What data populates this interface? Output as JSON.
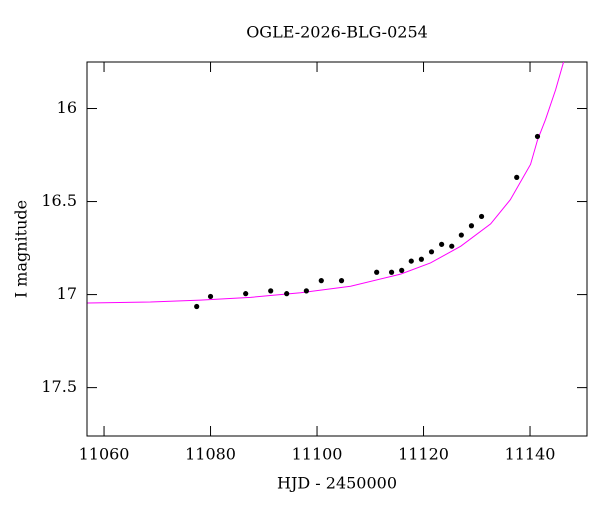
{
  "chart_data": {
    "type": "scatter",
    "title": "OGLE-2026-BLG-0254",
    "x_label": "HJD - 2450000",
    "y_label": "I magnitude",
    "xlim": [
      11056.8,
      11150.7
    ],
    "ylim": [
      15.75,
      17.76
    ],
    "y_inverted": true,
    "xticks": [
      11060,
      11080,
      11100,
      11120,
      11140
    ],
    "yticks": [
      16,
      16.5,
      17,
      17.5
    ],
    "points": {
      "color": "#000000",
      "x": [
        11077.4,
        11080.0,
        11086.6,
        11091.3,
        11094.3,
        11098.0,
        11100.8,
        11104.6,
        11111.2,
        11114.0,
        11115.9,
        11117.7,
        11119.6,
        11121.5,
        11123.4,
        11125.3,
        11127.1,
        11129.0,
        11130.9,
        11137.5,
        11141.4
      ],
      "y": [
        17.064,
        17.01,
        16.995,
        16.98,
        16.995,
        16.98,
        16.925,
        16.925,
        16.88,
        16.88,
        16.87,
        16.82,
        16.81,
        16.77,
        16.73,
        16.74,
        16.68,
        16.63,
        16.58,
        16.37,
        16.15
      ],
      "yerr": [
        0.012,
        0.012,
        0.012,
        0.012,
        0.012,
        0.012,
        0.012,
        0.012,
        0.01,
        0.01,
        0.01,
        0.01,
        0.01,
        0.01,
        0.01,
        0.01,
        0.01,
        0.01,
        0.01,
        0.01,
        0.01
      ]
    },
    "fit": {
      "color": "#ff00ff",
      "x": [
        11056.9,
        11068.7,
        11078.1,
        11087.5,
        11096.9,
        11106.3,
        11115.7,
        11121.3,
        11127.0,
        11132.6,
        11136.3,
        11140.1,
        11141.4,
        11142.9,
        11144.8,
        11146.3
      ],
      "y": [
        17.045,
        17.04,
        17.03,
        17.015,
        16.99,
        16.955,
        16.89,
        16.83,
        16.74,
        16.62,
        16.49,
        16.3,
        16.17,
        16.06,
        15.9,
        15.75
      ]
    }
  }
}
